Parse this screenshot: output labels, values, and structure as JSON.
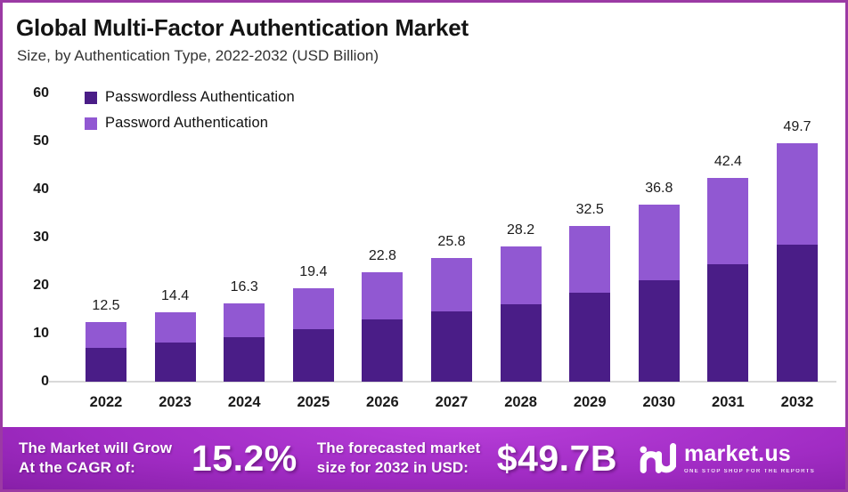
{
  "header": {
    "title": "Global Multi-Factor Authentication Market",
    "subtitle": "Size, by Authentication Type, 2022-2032 (USD Billion)"
  },
  "chart_data": {
    "type": "bar",
    "stacked": true,
    "title": "Global Multi-Factor Authentication Market",
    "xlabel": "",
    "ylabel": "USD Billion",
    "categories": [
      "2022",
      "2023",
      "2024",
      "2025",
      "2026",
      "2027",
      "2028",
      "2029",
      "2030",
      "2031",
      "2032"
    ],
    "series": [
      {
        "name": "Passwordless Authentication",
        "color": "#4a1d87",
        "values": [
          7.1,
          8.1,
          9.2,
          10.9,
          12.9,
          14.7,
          16.1,
          18.6,
          21.1,
          24.4,
          28.5
        ]
      },
      {
        "name": "Password Authentication",
        "color": "#9158d2",
        "values": [
          5.4,
          6.3,
          7.1,
          8.5,
          9.9,
          11.1,
          12.1,
          13.9,
          15.7,
          18.0,
          21.2
        ]
      }
    ],
    "totals": [
      12.5,
      14.4,
      16.3,
      19.4,
      22.8,
      25.8,
      28.2,
      32.5,
      36.8,
      42.4,
      49.7
    ],
    "ylim": [
      0,
      60
    ],
    "yticks": [
      0,
      10,
      20,
      30,
      40,
      50,
      60
    ],
    "grid": false,
    "legend_position": "top-left"
  },
  "banner": {
    "cagr_label_line1": "The Market will Grow",
    "cagr_label_line2": "At the CAGR of:",
    "cagr_value": "15.2%",
    "forecast_label_line1": "The forecasted market",
    "forecast_label_line2": "size for 2032 in USD:",
    "forecast_value": "$49.7B",
    "logo_text": "market.us",
    "logo_tagline": "ONE STOP SHOP FOR THE REPORTS"
  },
  "colors": {
    "border": "#9b3aa4",
    "series_dark": "#4a1d87",
    "series_light": "#9158d2",
    "axis_line": "#d9d9d9",
    "banner_center": "#a12cc4",
    "banner_edge": "#43094e",
    "text_dark": "#141414",
    "banner_text": "#ffffff"
  }
}
